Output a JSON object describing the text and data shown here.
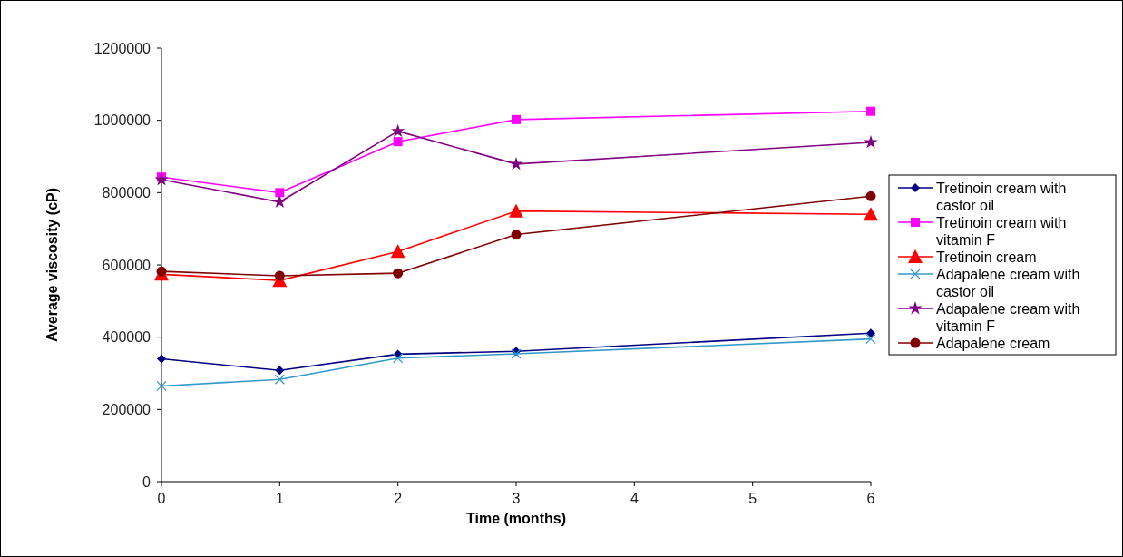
{
  "chart_data": {
    "type": "line",
    "xlabel": "Time (months)",
    "ylabel": "Average viscosity (cP)",
    "x": [
      0,
      1,
      2,
      3,
      6
    ],
    "xlim": [
      0,
      6
    ],
    "xticks": [
      0,
      1,
      2,
      3,
      4,
      5,
      6
    ],
    "ylim": [
      0,
      1200000
    ],
    "yticks": [
      0,
      200000,
      400000,
      600000,
      800000,
      1000000,
      1200000
    ],
    "grid": false,
    "legend": "right",
    "line_style": "solid",
    "series": [
      {
        "name": "Tretinoin cream with castor oil",
        "color": "#000080",
        "marker": "diamond",
        "values": [
          340000,
          308000,
          353000,
          361000,
          411000
        ]
      },
      {
        "name": "Tretinoin cream with vitamin F",
        "color": "#ff00ff",
        "marker": "square",
        "values": [
          843000,
          800000,
          941000,
          1002000,
          1025000
        ]
      },
      {
        "name": "Tretinoin cream",
        "color": "#ff0000",
        "marker": "triangle",
        "values": [
          574000,
          557000,
          637000,
          749000,
          740000
        ]
      },
      {
        "name": "Adapalene cream with castor oil",
        "color": "#3399cc",
        "marker": "cross",
        "values": [
          265000,
          283000,
          342000,
          354000,
          395000
        ]
      },
      {
        "name": "Adapalene cream with vitamin F",
        "color": "#800080",
        "marker": "star",
        "values": [
          836000,
          774000,
          970000,
          879000,
          939000
        ]
      },
      {
        "name": "Adapalene cream",
        "color": "#800000",
        "marker": "circle",
        "values": [
          582000,
          570000,
          577000,
          684000,
          790000
        ]
      }
    ]
  }
}
